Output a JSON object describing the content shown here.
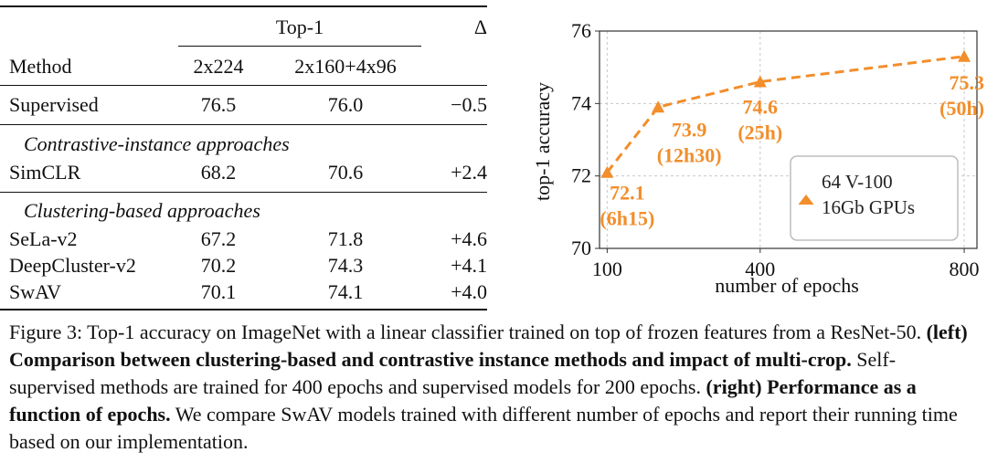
{
  "table": {
    "header": {
      "group_label": "Top-1",
      "delta_label": "Δ",
      "method_label": "Method",
      "col_2x224": "2x224",
      "col_multicrop": "2x160+4x96"
    },
    "rows_supervised": [
      {
        "method": "Supervised",
        "v1": "76.5",
        "v2": "76.0",
        "delta": "−0.5"
      }
    ],
    "section_contrastive": "Contrastive-instance approaches",
    "rows_contrastive": [
      {
        "method": "SimCLR",
        "v1": "68.2",
        "v2": "70.6",
        "delta": "+2.4"
      }
    ],
    "section_clustering": "Clustering-based approaches",
    "rows_clustering": [
      {
        "method": "SeLa-v2",
        "v1": "67.2",
        "v2": "71.8",
        "delta": "+4.6"
      },
      {
        "method": "DeepCluster-v2",
        "v1": "70.2",
        "v2": "74.3",
        "delta": "+4.1"
      },
      {
        "method": "SwAV",
        "v1": "70.1",
        "v2": "74.1",
        "delta": "+4.0"
      }
    ]
  },
  "chart_data": {
    "type": "line",
    "xlabel": "number of epochs",
    "ylabel": "top-1 accuracy",
    "xlim": [
      85,
      825
    ],
    "ylim": [
      70,
      76
    ],
    "xticks": [
      100,
      400,
      800
    ],
    "xtick_labels": [
      "100",
      "400",
      "800"
    ],
    "yticks": [
      70,
      72,
      74,
      76
    ],
    "ytick_labels": [
      "70",
      "72",
      "74",
      "76"
    ],
    "grid": true,
    "series": [
      {
        "name": "64 V-100 16Gb GPUs",
        "color": "#f28e2b",
        "x": [
          100,
          200,
          400,
          800
        ],
        "y": [
          72.1,
          73.9,
          74.6,
          75.3
        ],
        "labels": [
          {
            "value": "72.1",
            "time": "(6h15)"
          },
          {
            "value": "73.9",
            "time": "(12h30)"
          },
          {
            "value": "74.6",
            "time": "(25h)"
          },
          {
            "value": "75.3",
            "time": "(50h)"
          }
        ]
      }
    ],
    "legend": {
      "line1": "64 V-100",
      "line2": "16Gb GPUs",
      "position": "bottom-right"
    }
  },
  "caption": {
    "intro": "Figure 3: Top-1 accuracy on ImageNet with a linear classifier trained on top of frozen features from a ResNet-50.",
    "left_bold": "(left) Comparison between clustering-based and contrastive instance methods and impact of multi-crop.",
    "left_text": "Self-supervised methods are trained for 400 epochs and supervised models for 200 epochs.",
    "right_bold": "(right) Performance as a function of epochs.",
    "right_text": "We compare SwAV models trained with different number of epochs and report their running time based on our implementation."
  }
}
